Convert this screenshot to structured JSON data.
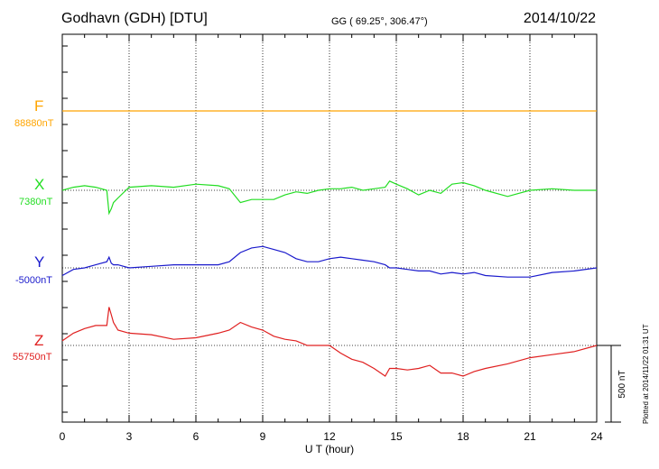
{
  "header": {
    "station": "Godhavn (GDH)  [DTU]",
    "coords": "GG ( 69.25°, 306.47°)",
    "date": "2014/10/22"
  },
  "components": [
    {
      "label": "F",
      "baseline": "88880nT",
      "color": "#ffa500"
    },
    {
      "label": "X",
      "baseline": "7380nT",
      "color": "#22dd22"
    },
    {
      "label": "Y",
      "baseline": "-5000nT",
      "color": "#1a1acc"
    },
    {
      "label": "Z",
      "baseline": "55750nT",
      "color": "#e02020"
    }
  ],
  "scale_bar": "500 nT",
  "footer": "Plotted at 2014/11/22 01:31  UT",
  "chart_data": {
    "type": "line",
    "title": "Godhavn (GDH)  [DTU]",
    "xlabel": "U T (hour)",
    "ylabel": "",
    "xlim": [
      0,
      24
    ],
    "x_ticks": [
      "0",
      "3",
      "6",
      "9",
      "12",
      "15",
      "18",
      "21",
      "24"
    ],
    "grid": true,
    "scale_nT": 500,
    "x": [
      0,
      0.5,
      1,
      1.5,
      2,
      2.1,
      2.2,
      2.3,
      2.5,
      3,
      4,
      5,
      6,
      7,
      7.5,
      8,
      8.5,
      9,
      9.5,
      10,
      10.5,
      11,
      11.5,
      12,
      12.5,
      13,
      13.5,
      14,
      14.5,
      14.7,
      15,
      15.5,
      16,
      16.5,
      17,
      17.5,
      18,
      18.5,
      19,
      20,
      21,
      22,
      23,
      24
    ],
    "series": [
      {
        "name": "F",
        "baseline": 88880,
        "values": [
          0,
          0,
          0,
          0,
          0,
          0,
          0,
          0,
          0,
          0,
          0,
          0,
          0,
          0,
          0,
          0,
          0,
          0,
          0,
          0,
          0,
          0,
          0,
          0,
          0,
          0,
          0,
          0,
          0,
          0,
          0,
          0,
          0,
          0,
          0,
          0,
          0,
          0,
          0,
          0,
          0,
          0,
          0,
          0
        ]
      },
      {
        "name": "X",
        "baseline": 7380,
        "values": [
          0,
          20,
          30,
          20,
          0,
          -150,
          -120,
          -80,
          -50,
          20,
          30,
          20,
          40,
          30,
          10,
          -80,
          -60,
          -60,
          -60,
          -30,
          -10,
          -20,
          0,
          10,
          10,
          20,
          0,
          10,
          20,
          60,
          40,
          10,
          -30,
          0,
          -20,
          40,
          50,
          30,
          0,
          -40,
          0,
          10,
          0,
          0
        ]
      },
      {
        "name": "Y",
        "baseline": -5000,
        "values": [
          -50,
          -10,
          0,
          20,
          40,
          70,
          30,
          20,
          20,
          0,
          10,
          20,
          20,
          20,
          40,
          100,
          130,
          140,
          120,
          100,
          60,
          40,
          40,
          60,
          70,
          60,
          50,
          40,
          20,
          0,
          0,
          -10,
          -20,
          -20,
          -40,
          -30,
          -40,
          -30,
          -50,
          -60,
          -60,
          -30,
          -20,
          0
        ]
      },
      {
        "name": "Z",
        "baseline": 55750,
        "values": [
          30,
          80,
          110,
          130,
          130,
          250,
          200,
          150,
          100,
          80,
          70,
          40,
          50,
          80,
          100,
          150,
          120,
          100,
          60,
          40,
          30,
          0,
          0,
          0,
          -50,
          -90,
          -110,
          -150,
          -200,
          -150,
          -150,
          -160,
          -150,
          -130,
          -180,
          -180,
          -200,
          -170,
          -150,
          -120,
          -80,
          -60,
          -40,
          0
        ]
      }
    ]
  }
}
